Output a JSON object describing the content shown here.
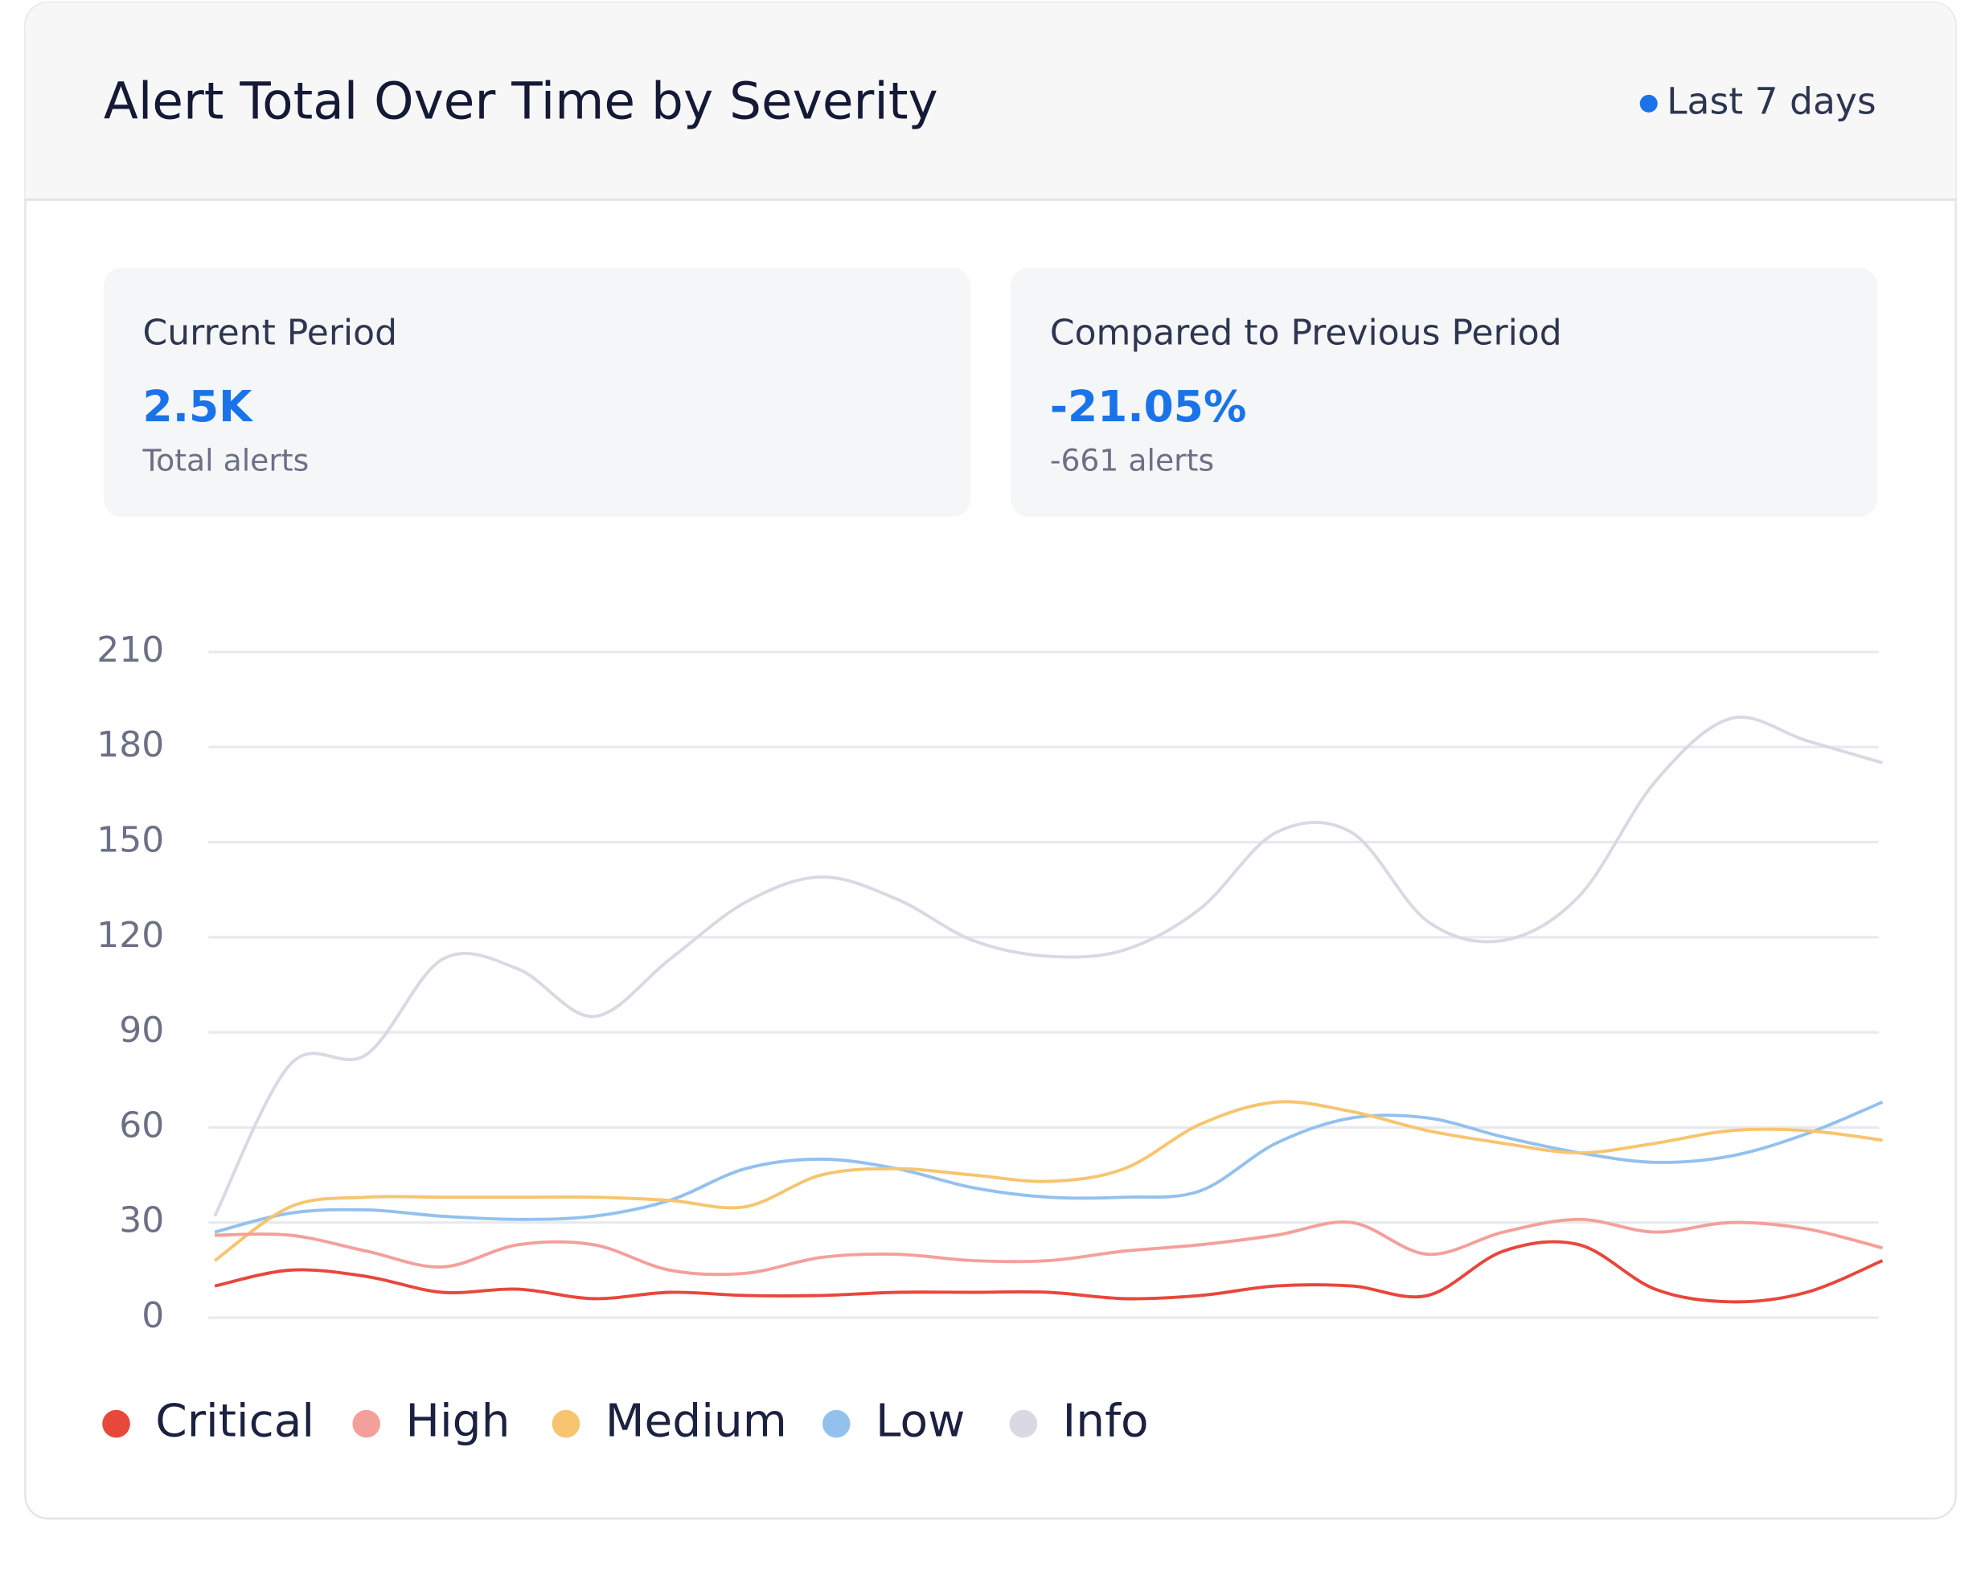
{
  "header": {
    "title": "Alert Total Over Time by Severity",
    "period": "Last 7 days"
  },
  "stats": [
    {
      "label": "Current Period",
      "value": "2.5K",
      "note": "Total alerts"
    },
    {
      "label": "Compared to Previous Period",
      "value": "-21.05%",
      "note": "-661 alerts"
    }
  ],
  "chart_data": {
    "type": "line",
    "categories": [
      null,
      null,
      null,
      null,
      null,
      null,
      null,
      null,
      null,
      null,
      null,
      null,
      null,
      null,
      null,
      null,
      null,
      null,
      null,
      null,
      null,
      null,
      null
    ],
    "series": [
      {
        "name": "Critical",
        "color": "#e8473c",
        "values": [
          10,
          15,
          13,
          8,
          9,
          6,
          8,
          7,
          7,
          8,
          8,
          8,
          6,
          7,
          10,
          10,
          7,
          21,
          23,
          9,
          5,
          8,
          18
        ]
      },
      {
        "name": "High",
        "color": "#f4a09a",
        "values": [
          26,
          26,
          21,
          16,
          23,
          23,
          15,
          14,
          19,
          20,
          18,
          18,
          21,
          23,
          26,
          30,
          20,
          27,
          31,
          27,
          30,
          28,
          22
        ]
      },
      {
        "name": "Medium",
        "color": "#f7c46f",
        "values": [
          18,
          35,
          38,
          38,
          38,
          38,
          37,
          35,
          45,
          47,
          45,
          43,
          47,
          61,
          68,
          65,
          59,
          55,
          52,
          55,
          59,
          59,
          56
        ]
      },
      {
        "name": "Low",
        "color": "#93c1ee",
        "values": [
          27,
          33,
          34,
          32,
          31,
          32,
          37,
          47,
          50,
          47,
          41,
          38,
          38,
          40,
          55,
          63,
          63,
          57,
          52,
          49,
          51,
          58,
          68
        ]
      },
      {
        "name": "Info",
        "color": "#d8d9e3",
        "values": [
          32,
          80,
          83,
          113,
          110,
          95,
          113,
          131,
          139,
          132,
          119,
          114,
          116,
          129,
          153,
          153,
          125,
          119,
          133,
          169,
          189,
          182,
          175
        ]
      }
    ],
    "ylim": [
      0,
      210
    ],
    "yticks": [
      0,
      30,
      60,
      90,
      120,
      150,
      180,
      210
    ],
    "grid": true,
    "legend": "bottom"
  }
}
